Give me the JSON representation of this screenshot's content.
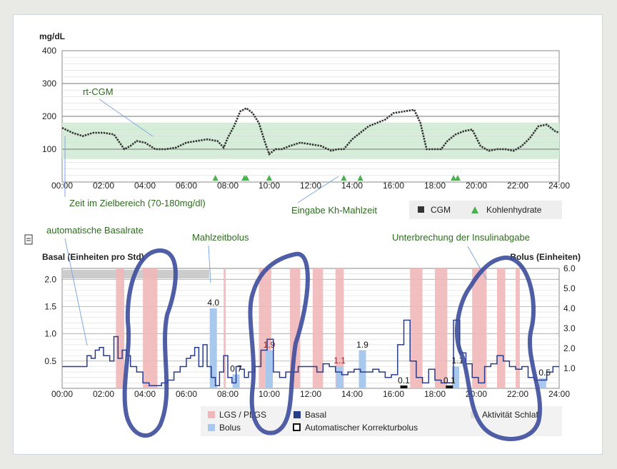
{
  "top_chart": {
    "ylabel": "mg/dL",
    "yticks": [
      "400",
      "300",
      "200",
      "100"
    ],
    "xticks": [
      "00:00",
      "02:00",
      "04:00",
      "06:00",
      "08:00",
      "10:00",
      "12:00",
      "14:00",
      "16:00",
      "18:00",
      "20:00",
      "22:00",
      "24:00"
    ],
    "annotations": {
      "cgm": "rt-CGM",
      "target": "Zeit im Zielbereich (70-180mg/dl)",
      "carbs": "Eingabe Kh-Mahlzeit"
    },
    "legend": {
      "cgm": "CGM",
      "carbs": "Kohlenhydrate"
    },
    "colors": {
      "target_band": "#d6eed9",
      "cgm_line": "#333333",
      "carb_marker": "#4caf50",
      "annotation_text": "#2e6b1f"
    }
  },
  "bottom_chart": {
    "left_title": "Basal (Einheiten pro Std)",
    "right_title": "Bolus (Einheiten)",
    "left_ticks": [
      "2.0",
      "1.5",
      "1.0",
      "0.5"
    ],
    "right_ticks": [
      "6.0",
      "5.0",
      "4.0",
      "3.0",
      "2.0",
      "1.0"
    ],
    "xticks": [
      "00:00",
      "02:00",
      "04:00",
      "06:00",
      "08:00",
      "10:00",
      "12:00",
      "14:00",
      "16:00",
      "18:00",
      "20:00",
      "22:00",
      "24:00"
    ],
    "annotations": {
      "basal": "automatische Basalrate",
      "bolus": "Mahlzeitbolus",
      "suspend": "Unterbrechung der Insulinabgabe"
    },
    "legend": {
      "lgs": "LGS / PLGS",
      "basal": "Basal",
      "sleep": "Aktivität Schlaf",
      "bolus": "Bolus",
      "autocorr": "Automatischer Korrekturbolus"
    },
    "colors": {
      "lgs_band": "#f0b8b8",
      "bolus_bar": "#a8c8ee",
      "basal_line": "#283c8c",
      "sleep_band": "#cccccc",
      "marker_circle": "#3d4c9c"
    }
  },
  "chart_data": [
    {
      "type": "line",
      "title": "",
      "ylabel": "mg/dL",
      "xlabel": "",
      "xlim": [
        0,
        24
      ],
      "ylim": [
        0,
        400
      ],
      "target_range": [
        70,
        180
      ],
      "series": [
        {
          "name": "CGM",
          "x": [
            0,
            0.5,
            1,
            1.5,
            2,
            2.5,
            3,
            3.3,
            3.6,
            4,
            4.5,
            5,
            5.5,
            6,
            6.5,
            7,
            7.5,
            7.8,
            8,
            8.3,
            8.6,
            8.9,
            9.2,
            9.5,
            9.8,
            10,
            10.3,
            10.6,
            11,
            11.5,
            12,
            12.5,
            13,
            13.3,
            13.6,
            14,
            14.4,
            14.8,
            15.2,
            15.6,
            16,
            16.5,
            17,
            17.3,
            17.6,
            18,
            18.3,
            18.6,
            19,
            19.4,
            19.8,
            20.2,
            20.6,
            21,
            21.4,
            21.8,
            22.2,
            22.6,
            23,
            23.4,
            23.8,
            24
          ],
          "y": [
            165,
            150,
            140,
            150,
            150,
            145,
            100,
            110,
            125,
            120,
            100,
            100,
            105,
            120,
            125,
            130,
            125,
            105,
            135,
            170,
            215,
            225,
            210,
            180,
            120,
            85,
            100,
            100,
            110,
            120,
            115,
            110,
            95,
            100,
            100,
            130,
            150,
            170,
            180,
            190,
            210,
            215,
            220,
            180,
            100,
            100,
            100,
            125,
            145,
            155,
            160,
            110,
            95,
            100,
            100,
            95,
            110,
            135,
            170,
            175,
            155,
            150
          ]
        }
      ],
      "markers": {
        "name": "Kohlenhydrate",
        "x": [
          7.4,
          8.8,
          8.9,
          10.0,
          13.6,
          14.4,
          18.9,
          19.1
        ]
      }
    },
    {
      "type": "bar",
      "title": "",
      "ylabel": "Basal (Einheiten pro Std)",
      "y2label": "Bolus (Einheiten)",
      "xlim": [
        0,
        24
      ],
      "ylim": [
        0,
        2.2
      ],
      "y2lim": [
        0,
        6.0
      ],
      "series": [
        {
          "name": "Basal",
          "x": [
            0,
            0.5,
            1,
            1.2,
            1.4,
            1.6,
            1.8,
            2,
            2.3,
            2.5,
            2.7,
            2.9,
            3.1,
            3.3,
            3.6,
            3.9,
            4.2,
            4.5,
            4.8,
            5.1,
            5.4,
            5.7,
            6,
            6.2,
            6.4,
            6.6,
            6.8,
            7,
            7.2,
            7.4,
            7.6,
            7.8,
            8,
            8.2,
            8.4,
            8.6,
            8.8,
            9,
            9.3,
            9.6,
            9.9,
            10.2,
            10.5,
            10.8,
            11.1,
            11.4,
            11.7,
            12,
            12.3,
            12.6,
            12.9,
            13.2,
            13.5,
            13.8,
            14.1,
            14.4,
            14.7,
            15,
            15.3,
            15.6,
            15.9,
            16.2,
            16.5,
            16.8,
            17.1,
            17.4,
            17.7,
            18,
            18.3,
            18.6,
            18.9,
            19.2,
            19.5,
            19.8,
            20.1,
            20.4,
            20.7,
            21,
            21.3,
            21.6,
            21.9,
            22.2,
            22.5,
            22.8,
            23.1,
            23.4,
            23.7,
            24
          ],
          "y": [
            0.4,
            0.4,
            0.4,
            0.6,
            0.55,
            0.7,
            0.75,
            0.6,
            0.5,
            0.95,
            0.55,
            0.7,
            0.6,
            0.4,
            0.3,
            0.1,
            0.05,
            0.05,
            0.1,
            0.15,
            0.3,
            0.4,
            0.55,
            0.6,
            0.75,
            0.4,
            0.8,
            0.4,
            0.2,
            0.05,
            0.3,
            0.6,
            0.2,
            0.1,
            0.4,
            0.35,
            0.2,
            0.3,
            0.4,
            0.7,
            0.9,
            0.3,
            0.2,
            0.3,
            0.3,
            0.4,
            0.4,
            0.4,
            0.3,
            0.45,
            0.4,
            0.3,
            0.25,
            0.3,
            0.35,
            0.3,
            0.3,
            0.35,
            0.3,
            0.2,
            0.25,
            0.8,
            1.25,
            0.5,
            0.2,
            0.1,
            0.35,
            0.15,
            0.1,
            0.1,
            1.25,
            0.65,
            0.45,
            0.2,
            0.1,
            0.4,
            0.45,
            0.6,
            0.5,
            0.4,
            0.35,
            0.4,
            0.2,
            0.15,
            0.15,
            0.3,
            0.4,
            0.4
          ]
        },
        {
          "name": "Bolus",
          "x": [
            7.3,
            8.4,
            10.0,
            13.4,
            14.5,
            16.5,
            18.8,
            19.0,
            23.2
          ],
          "y": [
            4.0,
            0.7,
            1.9,
            1.1,
            1.9,
            0.1,
            0.1,
            1.1,
            0.5
          ]
        }
      ],
      "bolus_labels": [
        {
          "x": 7.3,
          "text": "4.0"
        },
        {
          "x": 8.4,
          "text": "0.7"
        },
        {
          "x": 10.0,
          "text": "1.9"
        },
        {
          "x": 13.4,
          "text": "1.1"
        },
        {
          "x": 14.5,
          "text": "1.9"
        },
        {
          "x": 16.5,
          "text": "0.1"
        },
        {
          "x": 18.7,
          "text": "0.1"
        },
        {
          "x": 19.1,
          "text": "1.1"
        },
        {
          "x": 23.3,
          "text": "0.5"
        }
      ],
      "lgs_periods": [
        [
          2.6,
          3.0
        ],
        [
          3.9,
          4.6
        ],
        [
          7.8,
          7.9
        ],
        [
          9.5,
          10.1
        ],
        [
          11.0,
          11.5
        ],
        [
          12.1,
          12.6
        ],
        [
          13.2,
          13.6
        ],
        [
          16.8,
          17.4
        ],
        [
          18.0,
          18.6
        ],
        [
          19.8,
          20.5
        ],
        [
          21.0,
          21.4
        ],
        [
          21.9,
          22.1
        ]
      ],
      "sleep_periods": [
        [
          0.0,
          7.1
        ]
      ]
    }
  ]
}
